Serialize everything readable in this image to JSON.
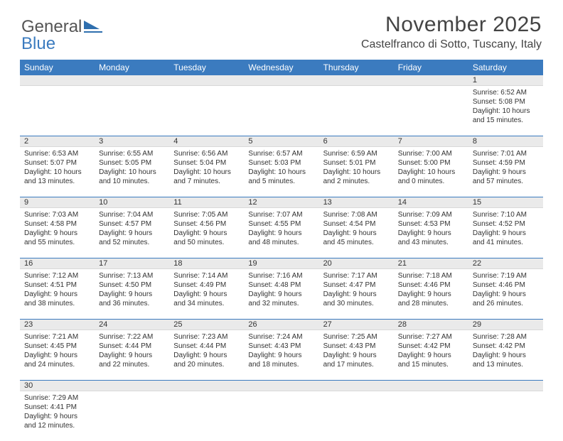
{
  "logo": {
    "text1": "General",
    "text2": "Blue"
  },
  "header": {
    "title": "November 2025",
    "location": "Castelfranco di Sotto, Tuscany, Italy"
  },
  "colors": {
    "header_bg": "#3b7bbf",
    "header_text": "#ffffff",
    "num_strip_bg": "#eaeaea",
    "border": "#3b7bbf",
    "text": "#333333"
  },
  "weekdays": [
    "Sunday",
    "Monday",
    "Tuesday",
    "Wednesday",
    "Thursday",
    "Friday",
    "Saturday"
  ],
  "weeks": [
    {
      "nums": [
        "",
        "",
        "",
        "",
        "",
        "",
        "1"
      ],
      "cells": [
        null,
        null,
        null,
        null,
        null,
        null,
        {
          "sunrise": "Sunrise: 6:52 AM",
          "sunset": "Sunset: 5:08 PM",
          "day1": "Daylight: 10 hours",
          "day2": "and 15 minutes."
        }
      ]
    },
    {
      "nums": [
        "2",
        "3",
        "4",
        "5",
        "6",
        "7",
        "8"
      ],
      "cells": [
        {
          "sunrise": "Sunrise: 6:53 AM",
          "sunset": "Sunset: 5:07 PM",
          "day1": "Daylight: 10 hours",
          "day2": "and 13 minutes."
        },
        {
          "sunrise": "Sunrise: 6:55 AM",
          "sunset": "Sunset: 5:05 PM",
          "day1": "Daylight: 10 hours",
          "day2": "and 10 minutes."
        },
        {
          "sunrise": "Sunrise: 6:56 AM",
          "sunset": "Sunset: 5:04 PM",
          "day1": "Daylight: 10 hours",
          "day2": "and 7 minutes."
        },
        {
          "sunrise": "Sunrise: 6:57 AM",
          "sunset": "Sunset: 5:03 PM",
          "day1": "Daylight: 10 hours",
          "day2": "and 5 minutes."
        },
        {
          "sunrise": "Sunrise: 6:59 AM",
          "sunset": "Sunset: 5:01 PM",
          "day1": "Daylight: 10 hours",
          "day2": "and 2 minutes."
        },
        {
          "sunrise": "Sunrise: 7:00 AM",
          "sunset": "Sunset: 5:00 PM",
          "day1": "Daylight: 10 hours",
          "day2": "and 0 minutes."
        },
        {
          "sunrise": "Sunrise: 7:01 AM",
          "sunset": "Sunset: 4:59 PM",
          "day1": "Daylight: 9 hours",
          "day2": "and 57 minutes."
        }
      ]
    },
    {
      "nums": [
        "9",
        "10",
        "11",
        "12",
        "13",
        "14",
        "15"
      ],
      "cells": [
        {
          "sunrise": "Sunrise: 7:03 AM",
          "sunset": "Sunset: 4:58 PM",
          "day1": "Daylight: 9 hours",
          "day2": "and 55 minutes."
        },
        {
          "sunrise": "Sunrise: 7:04 AM",
          "sunset": "Sunset: 4:57 PM",
          "day1": "Daylight: 9 hours",
          "day2": "and 52 minutes."
        },
        {
          "sunrise": "Sunrise: 7:05 AM",
          "sunset": "Sunset: 4:56 PM",
          "day1": "Daylight: 9 hours",
          "day2": "and 50 minutes."
        },
        {
          "sunrise": "Sunrise: 7:07 AM",
          "sunset": "Sunset: 4:55 PM",
          "day1": "Daylight: 9 hours",
          "day2": "and 48 minutes."
        },
        {
          "sunrise": "Sunrise: 7:08 AM",
          "sunset": "Sunset: 4:54 PM",
          "day1": "Daylight: 9 hours",
          "day2": "and 45 minutes."
        },
        {
          "sunrise": "Sunrise: 7:09 AM",
          "sunset": "Sunset: 4:53 PM",
          "day1": "Daylight: 9 hours",
          "day2": "and 43 minutes."
        },
        {
          "sunrise": "Sunrise: 7:10 AM",
          "sunset": "Sunset: 4:52 PM",
          "day1": "Daylight: 9 hours",
          "day2": "and 41 minutes."
        }
      ]
    },
    {
      "nums": [
        "16",
        "17",
        "18",
        "19",
        "20",
        "21",
        "22"
      ],
      "cells": [
        {
          "sunrise": "Sunrise: 7:12 AM",
          "sunset": "Sunset: 4:51 PM",
          "day1": "Daylight: 9 hours",
          "day2": "and 38 minutes."
        },
        {
          "sunrise": "Sunrise: 7:13 AM",
          "sunset": "Sunset: 4:50 PM",
          "day1": "Daylight: 9 hours",
          "day2": "and 36 minutes."
        },
        {
          "sunrise": "Sunrise: 7:14 AM",
          "sunset": "Sunset: 4:49 PM",
          "day1": "Daylight: 9 hours",
          "day2": "and 34 minutes."
        },
        {
          "sunrise": "Sunrise: 7:16 AM",
          "sunset": "Sunset: 4:48 PM",
          "day1": "Daylight: 9 hours",
          "day2": "and 32 minutes."
        },
        {
          "sunrise": "Sunrise: 7:17 AM",
          "sunset": "Sunset: 4:47 PM",
          "day1": "Daylight: 9 hours",
          "day2": "and 30 minutes."
        },
        {
          "sunrise": "Sunrise: 7:18 AM",
          "sunset": "Sunset: 4:46 PM",
          "day1": "Daylight: 9 hours",
          "day2": "and 28 minutes."
        },
        {
          "sunrise": "Sunrise: 7:19 AM",
          "sunset": "Sunset: 4:46 PM",
          "day1": "Daylight: 9 hours",
          "day2": "and 26 minutes."
        }
      ]
    },
    {
      "nums": [
        "23",
        "24",
        "25",
        "26",
        "27",
        "28",
        "29"
      ],
      "cells": [
        {
          "sunrise": "Sunrise: 7:21 AM",
          "sunset": "Sunset: 4:45 PM",
          "day1": "Daylight: 9 hours",
          "day2": "and 24 minutes."
        },
        {
          "sunrise": "Sunrise: 7:22 AM",
          "sunset": "Sunset: 4:44 PM",
          "day1": "Daylight: 9 hours",
          "day2": "and 22 minutes."
        },
        {
          "sunrise": "Sunrise: 7:23 AM",
          "sunset": "Sunset: 4:44 PM",
          "day1": "Daylight: 9 hours",
          "day2": "and 20 minutes."
        },
        {
          "sunrise": "Sunrise: 7:24 AM",
          "sunset": "Sunset: 4:43 PM",
          "day1": "Daylight: 9 hours",
          "day2": "and 18 minutes."
        },
        {
          "sunrise": "Sunrise: 7:25 AM",
          "sunset": "Sunset: 4:43 PM",
          "day1": "Daylight: 9 hours",
          "day2": "and 17 minutes."
        },
        {
          "sunrise": "Sunrise: 7:27 AM",
          "sunset": "Sunset: 4:42 PM",
          "day1": "Daylight: 9 hours",
          "day2": "and 15 minutes."
        },
        {
          "sunrise": "Sunrise: 7:28 AM",
          "sunset": "Sunset: 4:42 PM",
          "day1": "Daylight: 9 hours",
          "day2": "and 13 minutes."
        }
      ]
    },
    {
      "nums": [
        "30",
        "",
        "",
        "",
        "",
        "",
        ""
      ],
      "cells": [
        {
          "sunrise": "Sunrise: 7:29 AM",
          "sunset": "Sunset: 4:41 PM",
          "day1": "Daylight: 9 hours",
          "day2": "and 12 minutes."
        },
        null,
        null,
        null,
        null,
        null,
        null
      ]
    }
  ]
}
